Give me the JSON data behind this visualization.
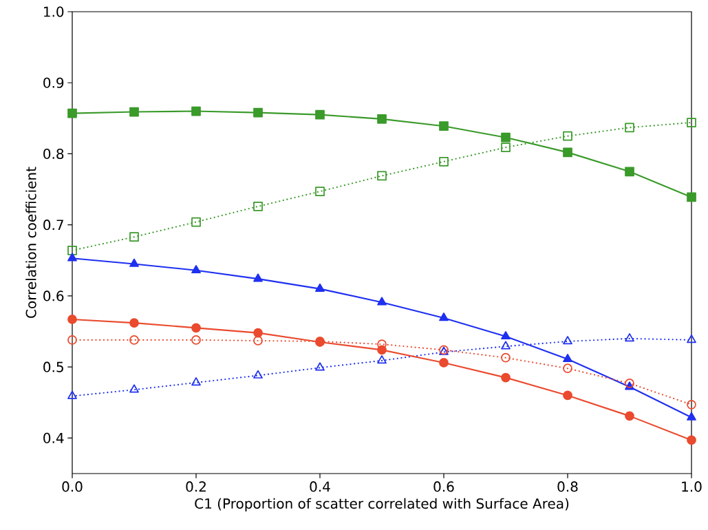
{
  "chart_data": {
    "type": "line",
    "xlabel": "C1 (Proportion of scatter correlated with Surface Area)",
    "ylabel": "Correlation coefficient",
    "x": [
      0,
      0.1,
      0.2,
      0.3,
      0.4,
      0.5,
      0.6,
      0.7,
      0.8,
      0.9,
      1.0
    ],
    "xlim": [
      0,
      1
    ],
    "ylim": [
      0.35,
      1.0
    ],
    "xticks": [
      {
        "value": 0,
        "label": "0.0"
      },
      {
        "value": 0.2,
        "label": "0.2"
      },
      {
        "value": 0.4,
        "label": "0.4"
      },
      {
        "value": 0.6,
        "label": "0.6"
      },
      {
        "value": 0.8,
        "label": "0.8"
      },
      {
        "value": 1.0,
        "label": "1.0"
      }
    ],
    "yticks": [
      {
        "value": 0.4,
        "label": "0.4"
      },
      {
        "value": 0.5,
        "label": "0.5"
      },
      {
        "value": 0.6,
        "label": "0.6"
      },
      {
        "value": 0.7,
        "label": "0.7"
      },
      {
        "value": 0.8,
        "label": "0.8"
      },
      {
        "value": 0.9,
        "label": "0.9"
      },
      {
        "value": 1.0,
        "label": "1.0"
      }
    ],
    "grid": false,
    "series": [
      {
        "color": "#3a9a2a",
        "marker": "square",
        "line_style": "solid",
        "values": [
          0.857,
          0.859,
          0.86,
          0.858,
          0.855,
          0.849,
          0.839,
          0.823,
          0.802,
          0.775,
          0.739
        ]
      },
      {
        "color": "#3a9a2a",
        "marker": "square",
        "line_style": "dotted",
        "values": [
          0.664,
          0.683,
          0.704,
          0.726,
          0.747,
          0.769,
          0.789,
          0.809,
          0.825,
          0.837,
          0.844
        ]
      },
      {
        "color": "#1f30f0",
        "marker": "triangle",
        "line_style": "solid",
        "values": [
          0.653,
          0.645,
          0.636,
          0.624,
          0.61,
          0.591,
          0.569,
          0.543,
          0.511,
          0.472,
          0.429
        ]
      },
      {
        "color": "#1f30f0",
        "marker": "triangle",
        "line_style": "dotted",
        "values": [
          0.459,
          0.468,
          0.478,
          0.488,
          0.499,
          0.509,
          0.521,
          0.529,
          0.536,
          0.54,
          0.538
        ]
      },
      {
        "color": "#ea4a2e",
        "marker": "circle",
        "line_style": "solid",
        "values": [
          0.567,
          0.562,
          0.555,
          0.548,
          0.535,
          0.524,
          0.506,
          0.485,
          0.46,
          0.431,
          0.397
        ]
      },
      {
        "color": "#ea4a2e",
        "marker": "circle",
        "line_style": "dotted",
        "values": [
          0.538,
          0.538,
          0.538,
          0.537,
          0.536,
          0.532,
          0.524,
          0.513,
          0.498,
          0.477,
          0.447
        ]
      }
    ]
  }
}
